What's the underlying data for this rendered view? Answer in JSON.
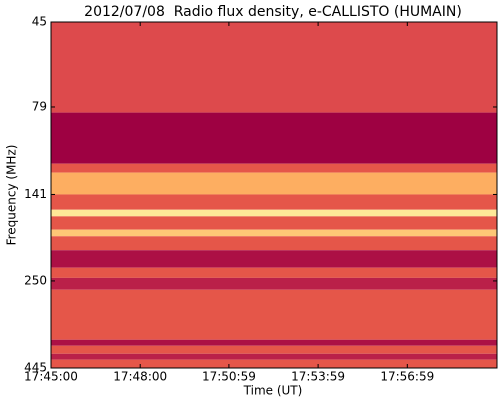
{
  "chart_data": {
    "type": "spectrogram",
    "title": "2012/07/08  Radio flux density, e-CALLISTO (HUMAIN)",
    "xlabel": "Time (UT)",
    "ylabel": "Frequency (MHz)",
    "xlim": [
      63900,
      64800
    ],
    "xticks": [
      {
        "value": 63900,
        "label": "17:45:00"
      },
      {
        "value": 64080,
        "label": "17:48:00"
      },
      {
        "value": 64259,
        "label": "17:50:59"
      },
      {
        "value": 64439,
        "label": "17:53:59"
      },
      {
        "value": 64619,
        "label": "17:56:59"
      }
    ],
    "ylim": [
      45,
      445
    ],
    "yscale": "log",
    "yinverted": true,
    "yticks": [
      45,
      79,
      141,
      250,
      445
    ],
    "colors": [
      "#9e0142",
      "#d53e4f",
      "#f46d43",
      "#fdae61",
      "#fee08b",
      "#ffffbf"
    ],
    "bands": [
      {
        "freq": [
          45,
          82
        ],
        "level": 0.25
      },
      {
        "freq": [
          82,
          115
        ],
        "level": 0.0
      },
      {
        "freq": [
          115,
          122
        ],
        "level": 0.3
      },
      {
        "freq": [
          122,
          141
        ],
        "level": 0.6
      },
      {
        "freq": [
          141,
          156
        ],
        "level": 0.3
      },
      {
        "freq": [
          156,
          163
        ],
        "level": 0.85
      },
      {
        "freq": [
          163,
          178
        ],
        "level": 0.3
      },
      {
        "freq": [
          178,
          186
        ],
        "level": 0.7
      },
      {
        "freq": [
          186,
          204
        ],
        "level": 0.3
      },
      {
        "freq": [
          204,
          229
        ],
        "level": 0.05
      },
      {
        "freq": [
          229,
          245
        ],
        "level": 0.3
      },
      {
        "freq": [
          245,
          265
        ],
        "level": 0.1
      },
      {
        "freq": [
          265,
          369
        ],
        "level": 0.3
      },
      {
        "freq": [
          369,
          384
        ],
        "level": 0.05
      },
      {
        "freq": [
          384,
          405
        ],
        "level": 0.3
      },
      {
        "freq": [
          405,
          421
        ],
        "level": 0.1
      },
      {
        "freq": [
          421,
          445
        ],
        "level": 0.3
      }
    ]
  }
}
